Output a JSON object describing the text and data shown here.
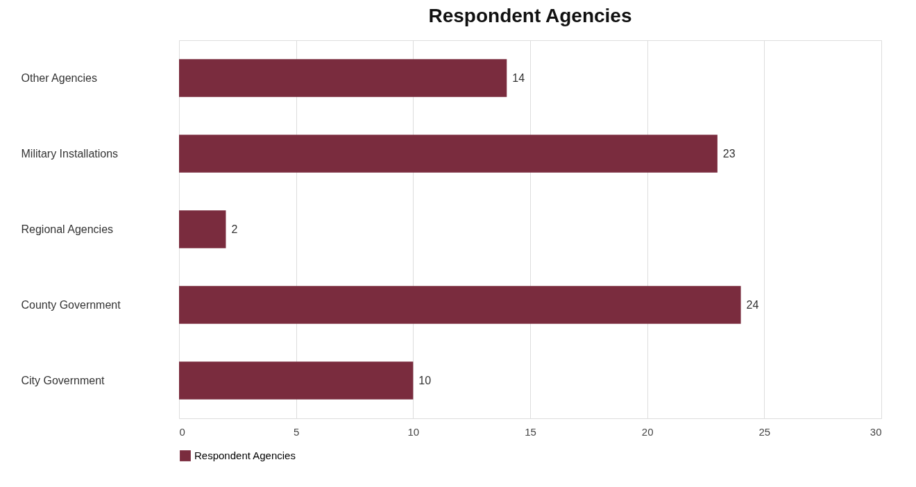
{
  "chart_data": {
    "type": "bar",
    "orientation": "horizontal",
    "title": "Respondent Agencies",
    "categories": [
      "Other Agencies",
      "Military Installations",
      "Regional Agencies",
      "County Government",
      "City Government"
    ],
    "series": [
      {
        "name": "Respondent Agencies",
        "color": "#7a2c3e",
        "values": [
          14,
          23,
          2,
          24,
          10
        ]
      }
    ],
    "xlim": [
      0,
      30
    ],
    "xticks": [
      0,
      5,
      10,
      15,
      20,
      25,
      30
    ],
    "grid": "x",
    "data_labels": true,
    "legend": "bottom"
  }
}
